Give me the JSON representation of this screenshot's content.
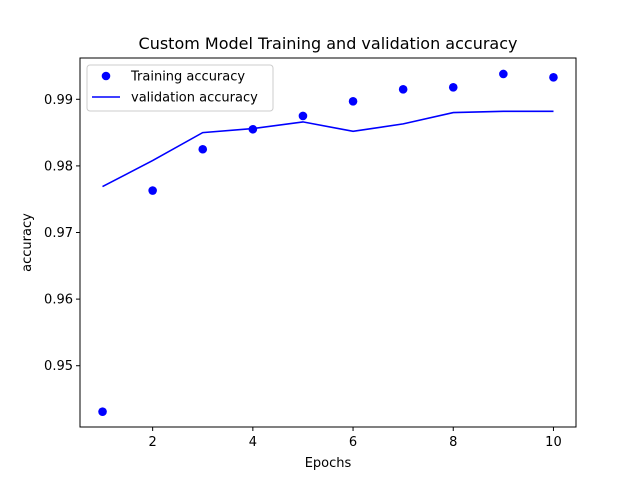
{
  "chart_data": {
    "type": "line",
    "title": "Custom Model Training and validation accuracy",
    "xlabel": "Epochs",
    "ylabel": "accuracy",
    "xlim": [
      0.55,
      10.45
    ],
    "ylim": [
      0.9408,
      0.9962
    ],
    "x_ticks": [
      2,
      4,
      6,
      8,
      10
    ],
    "y_ticks": [
      0.95,
      0.96,
      0.97,
      0.98,
      0.99
    ],
    "grid": false,
    "legend_position": "top-left",
    "x": [
      1,
      2,
      3,
      4,
      5,
      6,
      7,
      8,
      9,
      10
    ],
    "series": [
      {
        "name": "Training accuracy",
        "style": "markers",
        "color": "#0000ff",
        "values": [
          0.9431,
          0.9763,
          0.9825,
          0.9855,
          0.9875,
          0.9897,
          0.9915,
          0.9918,
          0.9938,
          0.9933
        ]
      },
      {
        "name": "validation accuracy",
        "style": "line",
        "color": "#0000ff",
        "values": [
          0.9769,
          0.9808,
          0.985,
          0.9856,
          0.9866,
          0.9852,
          0.9863,
          0.988,
          0.9882,
          0.9882
        ]
      }
    ]
  }
}
